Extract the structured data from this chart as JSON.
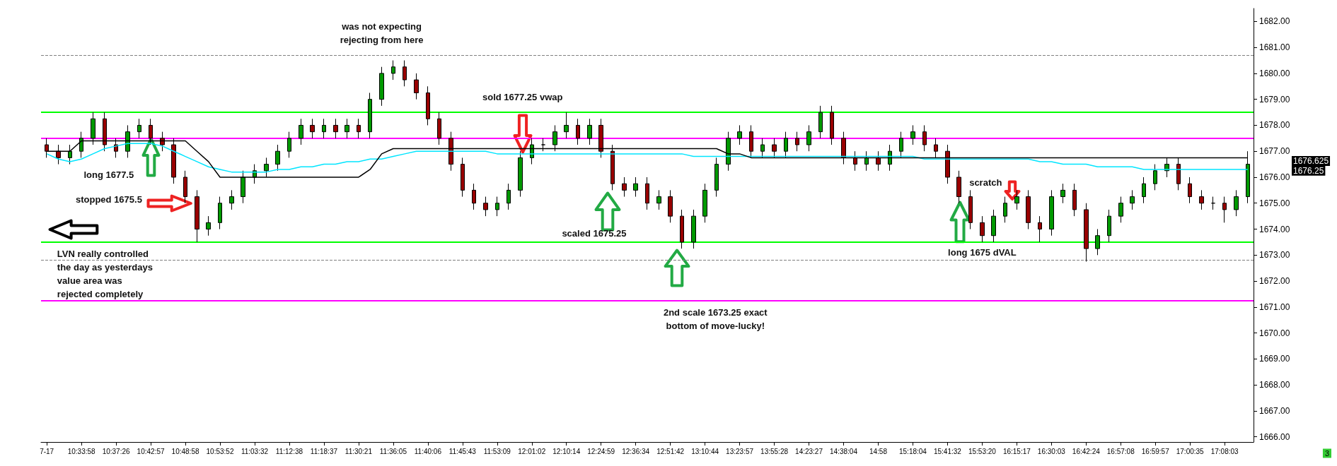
{
  "chart_data": {
    "type": "candlestick",
    "categories": [
      "7-17",
      null,
      null,
      "10:33:58",
      null,
      null,
      "10:37:26",
      null,
      null,
      "10:42:57",
      null,
      null,
      "10:48:58",
      null,
      null,
      "10:53:52",
      null,
      null,
      "11:03:32",
      null,
      null,
      "11:12:38",
      null,
      null,
      "11:18:37",
      null,
      null,
      "11:30:21",
      null,
      null,
      "11:36:05",
      null,
      null,
      "11:40:06",
      null,
      null,
      "11:45:43",
      null,
      null,
      "11:53:09",
      null,
      null,
      "12:01:02",
      null,
      null,
      "12:10:14",
      null,
      null,
      "12:24:59",
      null,
      null,
      "12:36:34",
      null,
      null,
      "12:51:42",
      null,
      null,
      "13:10:44",
      null,
      null,
      "13:23:57",
      null,
      null,
      "13:55:28",
      null,
      null,
      "14:23:27",
      null,
      null,
      "14:38:04",
      null,
      null,
      "14:58",
      null,
      null,
      "15:18:04",
      null,
      null,
      "15:41:32",
      null,
      null,
      "15:53:20",
      null,
      null,
      "16:15:17",
      null,
      null,
      "16:30:03",
      null,
      null,
      "16:42:24",
      null,
      null,
      "16:57:08",
      null,
      null,
      "16:59:57",
      null,
      null,
      "17:00:35",
      null,
      null,
      "17:08:03",
      null,
      null
    ],
    "ohlc": [
      [
        1677.25,
        1677.5,
        1676.75,
        1677.0
      ],
      [
        1677.0,
        1677.25,
        1676.5,
        1676.75
      ],
      [
        1676.75,
        1677.25,
        1676.5,
        1677.0
      ],
      [
        1677.0,
        1677.75,
        1676.75,
        1677.5
      ],
      [
        1677.5,
        1678.5,
        1677.25,
        1678.25
      ],
      [
        1678.25,
        1678.5,
        1677.0,
        1677.25
      ],
      [
        1677.25,
        1677.5,
        1676.75,
        1677.0
      ],
      [
        1677.0,
        1678.0,
        1676.75,
        1677.75
      ],
      [
        1677.75,
        1678.25,
        1677.5,
        1678.0
      ],
      [
        1678.0,
        1678.25,
        1677.25,
        1677.5
      ],
      [
        1677.5,
        1677.75,
        1677.0,
        1677.25
      ],
      [
        1677.25,
        1677.5,
        1675.75,
        1676.0
      ],
      [
        1676.0,
        1676.25,
        1675.0,
        1675.25
      ],
      [
        1675.25,
        1675.5,
        1673.5,
        1674.0
      ],
      [
        1674.0,
        1674.5,
        1673.75,
        1674.25
      ],
      [
        1674.25,
        1675.25,
        1674.0,
        1675.0
      ],
      [
        1675.0,
        1675.5,
        1674.75,
        1675.25
      ],
      [
        1675.25,
        1676.25,
        1675.0,
        1676.0
      ],
      [
        1676.0,
        1676.5,
        1675.75,
        1676.25
      ],
      [
        1676.25,
        1676.75,
        1676.0,
        1676.5
      ],
      [
        1676.5,
        1677.25,
        1676.25,
        1677.0
      ],
      [
        1677.0,
        1677.75,
        1676.75,
        1677.5
      ],
      [
        1677.5,
        1678.25,
        1677.25,
        1678.0
      ],
      [
        1678.0,
        1678.25,
        1677.5,
        1677.75
      ],
      [
        1677.75,
        1678.25,
        1677.5,
        1678.0
      ],
      [
        1678.0,
        1678.25,
        1677.5,
        1677.75
      ],
      [
        1677.75,
        1678.25,
        1677.5,
        1678.0
      ],
      [
        1678.0,
        1678.25,
        1677.5,
        1677.75
      ],
      [
        1677.75,
        1679.25,
        1677.5,
        1679.0
      ],
      [
        1679.0,
        1680.25,
        1678.75,
        1680.0
      ],
      [
        1680.0,
        1680.5,
        1679.75,
        1680.25
      ],
      [
        1680.25,
        1680.5,
        1679.5,
        1679.75
      ],
      [
        1679.75,
        1680.0,
        1679.0,
        1679.25
      ],
      [
        1679.25,
        1679.5,
        1678.0,
        1678.25
      ],
      [
        1678.25,
        1678.5,
        1677.25,
        1677.5
      ],
      [
        1677.5,
        1677.75,
        1676.25,
        1676.5
      ],
      [
        1676.5,
        1676.75,
        1675.25,
        1675.5
      ],
      [
        1675.5,
        1675.75,
        1674.75,
        1675.0
      ],
      [
        1675.0,
        1675.25,
        1674.5,
        1674.75
      ],
      [
        1674.75,
        1675.25,
        1674.5,
        1675.0
      ],
      [
        1675.0,
        1675.75,
        1674.75,
        1675.5
      ],
      [
        1675.5,
        1677.0,
        1675.25,
        1676.75
      ],
      [
        1676.75,
        1677.5,
        1676.5,
        1677.25
      ],
      [
        1677.25,
        1677.5,
        1677.0,
        1677.25
      ],
      [
        1677.25,
        1678.0,
        1677.0,
        1677.75
      ],
      [
        1677.75,
        1678.5,
        1677.5,
        1678.0
      ],
      [
        1678.0,
        1678.25,
        1677.25,
        1677.5
      ],
      [
        1677.5,
        1678.25,
        1677.25,
        1678.0
      ],
      [
        1678.0,
        1678.25,
        1676.75,
        1677.0
      ],
      [
        1677.0,
        1677.25,
        1675.5,
        1675.75
      ],
      [
        1675.75,
        1676.0,
        1675.25,
        1675.5
      ],
      [
        1675.5,
        1676.0,
        1675.25,
        1675.75
      ],
      [
        1675.75,
        1676.0,
        1674.75,
        1675.0
      ],
      [
        1675.0,
        1675.5,
        1674.75,
        1675.25
      ],
      [
        1675.25,
        1675.5,
        1674.25,
        1674.5
      ],
      [
        1674.5,
        1674.75,
        1673.25,
        1673.5
      ],
      [
        1673.5,
        1674.75,
        1673.25,
        1674.5
      ],
      [
        1674.5,
        1675.75,
        1674.25,
        1675.5
      ],
      [
        1675.5,
        1676.75,
        1675.25,
        1676.5
      ],
      [
        1676.5,
        1677.75,
        1676.25,
        1677.5
      ],
      [
        1677.5,
        1678.0,
        1677.25,
        1677.75
      ],
      [
        1677.75,
        1678.0,
        1676.75,
        1677.0
      ],
      [
        1677.0,
        1677.5,
        1676.75,
        1677.25
      ],
      [
        1677.25,
        1677.5,
        1676.75,
        1677.0
      ],
      [
        1677.0,
        1677.75,
        1676.75,
        1677.5
      ],
      [
        1677.5,
        1677.75,
        1677.0,
        1677.25
      ],
      [
        1677.25,
        1678.0,
        1677.0,
        1677.75
      ],
      [
        1677.75,
        1678.75,
        1677.5,
        1678.5
      ],
      [
        1678.5,
        1678.75,
        1677.25,
        1677.5
      ],
      [
        1677.5,
        1677.75,
        1676.5,
        1676.75
      ],
      [
        1676.75,
        1677.0,
        1676.25,
        1676.5
      ],
      [
        1676.5,
        1677.0,
        1676.25,
        1676.75
      ],
      [
        1676.75,
        1677.0,
        1676.25,
        1676.5
      ],
      [
        1676.5,
        1677.25,
        1676.25,
        1677.0
      ],
      [
        1677.0,
        1677.75,
        1676.75,
        1677.5
      ],
      [
        1677.5,
        1678.0,
        1677.25,
        1677.75
      ],
      [
        1677.75,
        1678.0,
        1677.0,
        1677.25
      ],
      [
        1677.25,
        1677.5,
        1676.75,
        1677.0
      ],
      [
        1677.0,
        1677.25,
        1675.75,
        1676.0
      ],
      [
        1676.0,
        1676.25,
        1675.0,
        1675.25
      ],
      [
        1675.25,
        1675.5,
        1674.0,
        1674.25
      ],
      [
        1674.25,
        1674.5,
        1673.5,
        1673.75
      ],
      [
        1673.75,
        1674.75,
        1673.5,
        1674.5
      ],
      [
        1674.5,
        1675.25,
        1674.25,
        1675.0
      ],
      [
        1675.0,
        1675.5,
        1674.75,
        1675.25
      ],
      [
        1675.25,
        1675.5,
        1674.0,
        1674.25
      ],
      [
        1674.25,
        1674.5,
        1673.5,
        1674.0
      ],
      [
        1674.0,
        1675.5,
        1673.75,
        1675.25
      ],
      [
        1675.25,
        1675.75,
        1675.0,
        1675.5
      ],
      [
        1675.5,
        1675.75,
        1674.5,
        1674.75
      ],
      [
        1674.75,
        1675.0,
        1672.75,
        1673.25
      ],
      [
        1673.25,
        1674.0,
        1673.0,
        1673.75
      ],
      [
        1673.75,
        1674.75,
        1673.5,
        1674.5
      ],
      [
        1674.5,
        1675.25,
        1674.25,
        1675.0
      ],
      [
        1675.0,
        1675.5,
        1674.75,
        1675.25
      ],
      [
        1675.25,
        1676.0,
        1675.0,
        1675.75
      ],
      [
        1675.75,
        1676.5,
        1675.5,
        1676.25
      ],
      [
        1676.25,
        1676.75,
        1676.0,
        1676.5
      ],
      [
        1676.5,
        1676.75,
        1675.5,
        1675.75
      ],
      [
        1675.75,
        1676.0,
        1675.0,
        1675.25
      ],
      [
        1675.25,
        1675.5,
        1674.75,
        1675.0
      ],
      [
        1675.0,
        1675.25,
        1674.75,
        1675.0
      ],
      [
        1675.0,
        1675.25,
        1674.25,
        1674.75
      ],
      [
        1674.75,
        1675.5,
        1674.5,
        1675.25
      ],
      [
        1675.25,
        1677.0,
        1675.0,
        1676.5
      ]
    ],
    "series": [
      {
        "type": "line",
        "color": "#00e5ff",
        "values": [
          1676.9,
          1676.7,
          1676.6,
          1676.7,
          1676.9,
          1677.1,
          1677.2,
          1677.3,
          1677.3,
          1677.3,
          1677.2,
          1677.0,
          1676.8,
          1676.6,
          1676.4,
          1676.3,
          1676.2,
          1676.2,
          1676.2,
          1676.2,
          1676.3,
          1676.3,
          1676.4,
          1676.4,
          1676.5,
          1676.5,
          1676.6,
          1676.6,
          1676.7,
          1676.7,
          1676.8,
          1676.9,
          1677.0,
          1677.0,
          1677.0,
          1677.0,
          1677.0,
          1677.0,
          1677.0,
          1676.9,
          1676.9,
          1676.9,
          1676.9,
          1676.9,
          1676.9,
          1676.9,
          1676.9,
          1676.9,
          1676.9,
          1676.9,
          1676.9,
          1676.9,
          1676.9,
          1676.9,
          1676.9,
          1676.9,
          1676.8,
          1676.8,
          1676.8,
          1676.8,
          1676.8,
          1676.8,
          1676.8,
          1676.8,
          1676.8,
          1676.8,
          1676.8,
          1676.8,
          1676.8,
          1676.8,
          1676.8,
          1676.8,
          1676.8,
          1676.8,
          1676.8,
          1676.8,
          1676.7,
          1676.7,
          1676.7,
          1676.7,
          1676.7,
          1676.7,
          1676.7,
          1676.7,
          1676.7,
          1676.7,
          1676.6,
          1676.6,
          1676.5,
          1676.5,
          1676.5,
          1676.4,
          1676.4,
          1676.4,
          1676.4,
          1676.3,
          1676.3,
          1676.3,
          1676.3,
          1676.3,
          1676.3,
          1676.3,
          1676.3,
          1676.3,
          1676.3
        ]
      },
      {
        "type": "line",
        "color": "#000000",
        "values": [
          1677.0,
          1677.0,
          1677.0,
          1677.4,
          1677.4,
          1677.4,
          1677.4,
          1677.4,
          1677.4,
          1677.4,
          1677.4,
          1677.4,
          1677.4,
          1677.0,
          1676.6,
          1676.0,
          1676.0,
          1676.0,
          1676.0,
          1676.0,
          1676.0,
          1676.0,
          1676.0,
          1676.0,
          1676.0,
          1676.0,
          1676.0,
          1676.0,
          1676.3,
          1676.9,
          1677.1,
          1677.1,
          1677.1,
          1677.1,
          1677.1,
          1677.1,
          1677.1,
          1677.1,
          1677.1,
          1677.1,
          1677.1,
          1677.1,
          1677.1,
          1677.1,
          1677.1,
          1677.1,
          1677.1,
          1677.1,
          1677.1,
          1677.1,
          1677.1,
          1677.1,
          1677.1,
          1677.1,
          1677.1,
          1677.1,
          1677.1,
          1677.1,
          1677.1,
          1676.9,
          1676.9,
          1676.75,
          1676.75,
          1676.75,
          1676.75,
          1676.75,
          1676.75,
          1676.75,
          1676.75,
          1676.75,
          1676.75,
          1676.75,
          1676.75,
          1676.75,
          1676.75,
          1676.75,
          1676.75,
          1676.75,
          1676.75,
          1676.75,
          1676.75,
          1676.75,
          1676.75,
          1676.75,
          1676.75,
          1676.75,
          1676.75,
          1676.75,
          1676.75,
          1676.75,
          1676.75,
          1676.75,
          1676.75,
          1676.75,
          1676.75,
          1676.75,
          1676.75,
          1676.75,
          1676.75,
          1676.75,
          1676.75,
          1676.75,
          1676.75,
          1676.75,
          1676.75
        ]
      }
    ],
    "marker": "none",
    "ylim": [
      1665.8,
      1682.5
    ],
    "yticks": [
      {
        "value": 1666,
        "label": "1666.00"
      },
      {
        "value": 1667,
        "label": "1667.00"
      },
      {
        "value": 1668,
        "label": "1668.00"
      },
      {
        "value": 1669,
        "label": "1669.00"
      },
      {
        "value": 1670,
        "label": "1670.00"
      },
      {
        "value": 1671,
        "label": "1671.00"
      },
      {
        "value": 1672,
        "label": "1672.00"
      },
      {
        "value": 1673,
        "label": "1673.00"
      },
      {
        "value": 1674,
        "label": "1674.00"
      },
      {
        "value": 1675,
        "label": "1675.00"
      },
      {
        "value": 1676,
        "label": "1676.00"
      },
      {
        "value": 1677,
        "label": "1677.00"
      },
      {
        "value": 1678,
        "label": "1678.00"
      },
      {
        "value": 1679,
        "label": "1679.00"
      },
      {
        "value": 1680,
        "label": "1680.00"
      },
      {
        "value": 1681,
        "label": "1681.00"
      },
      {
        "value": 1682,
        "label": "1682.00"
      }
    ],
    "ref_lines": [
      {
        "axis": "y",
        "value": 1678.5,
        "color": "#00ff00",
        "line_style": "solid"
      },
      {
        "axis": "y",
        "value": 1673.5,
        "color": "#00ff00",
        "line_style": "solid"
      },
      {
        "axis": "y",
        "value": 1677.5,
        "color": "#ff00ff",
        "line_style": "solid"
      },
      {
        "axis": "y",
        "value": 1671.25,
        "color": "#ff00ff",
        "line_style": "solid"
      },
      {
        "axis": "y",
        "value": 1680.7,
        "color": "#808080",
        "line_style": "dashed"
      },
      {
        "axis": "y",
        "value": 1672.8,
        "color": "#808080",
        "line_style": "dashed"
      }
    ],
    "annotations": [
      "was not expecting rejecting from here",
      "sold 1677.25 vwap",
      "long 1677.5",
      "stopped 1675.5",
      "LVN really controlled the day as yesterdays value area was rejected completely",
      "scaled 1675.25",
      "2nd scale 1673.25 exact bottom of move-lucky!",
      "scratch",
      "long 1675 dVAL",
      "1676.625",
      "1676.25",
      "3"
    ],
    "grid": false
  }
}
